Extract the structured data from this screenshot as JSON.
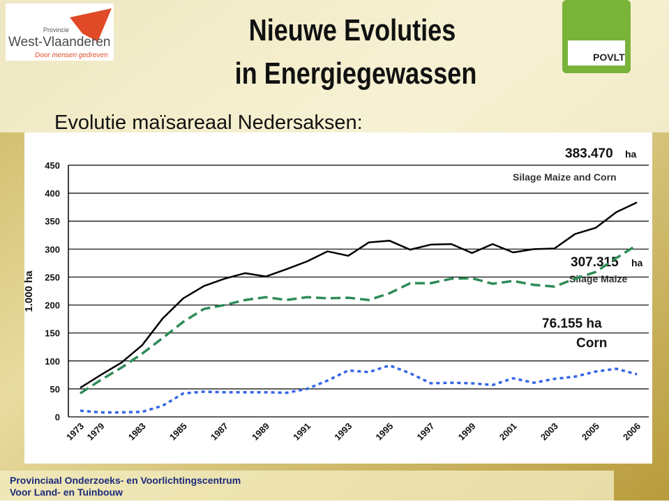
{
  "header": {
    "title_line1": "Nieuwe Evoluties",
    "title_line2": "in Energiegewassen",
    "subtitle": "Evolutie maïsareaal Nedersaksen:",
    "logo_left": {
      "small": "Provincie",
      "name": "West-Vlaanderen",
      "slogan": "Door mensen gedreven"
    },
    "logo_right": "POVLT"
  },
  "footer": {
    "line1": "Provinciaal Onderzoeks- en Voorlichtingscentrum",
    "line2": "Voor Land- en Tuinbouw"
  },
  "chart_data": {
    "type": "line",
    "ylabel": "1.000 ha",
    "categories": [
      "1973",
      "1979",
      null,
      "1983",
      null,
      "1985",
      null,
      "1987",
      null,
      "1989",
      null,
      "1991",
      null,
      "1993",
      null,
      "1995",
      null,
      "1997",
      null,
      "1999",
      null,
      "2001",
      null,
      "2003",
      null,
      "2005",
      null,
      "2006"
    ],
    "series": [
      {
        "name": "Silage Maize and Corn",
        "color": "#000000",
        "dash": "solid",
        "values": [
          52,
          75,
          97,
          128,
          176,
          212,
          234,
          247,
          257,
          251,
          264,
          278,
          296,
          288,
          312,
          315,
          299,
          308,
          309,
          293,
          309,
          294,
          300,
          301,
          327,
          338,
          366,
          383.47
        ]
      },
      {
        "name": "Silage Maize",
        "color": "#2e8b57",
        "dash": "dashed",
        "values": [
          42,
          66,
          88,
          113,
          141,
          170,
          193,
          200,
          209,
          214,
          209,
          214,
          212,
          213,
          209,
          221,
          239,
          239,
          247,
          248,
          238,
          243,
          236,
          233,
          247,
          259,
          284,
          307.315
        ]
      },
      {
        "name": "Corn",
        "color": "#3366e6",
        "dash": "dotted",
        "values": [
          11,
          8,
          8,
          9,
          20,
          42,
          45,
          44,
          44,
          44,
          43,
          50,
          65,
          83,
          80,
          92,
          78,
          60,
          61,
          60,
          57,
          69,
          61,
          68,
          72,
          81,
          86,
          76.155
        ]
      }
    ],
    "annotations": [
      {
        "value": "383.470",
        "unit": "ha",
        "label": "Silage Maize and Corn"
      },
      {
        "value": "307.315",
        "unit": "ha",
        "label": "Silage Maize"
      },
      {
        "value": "76.155 ha",
        "label": "Corn"
      }
    ],
    "ylim": [
      0,
      450
    ],
    "yticks": [
      0,
      50,
      100,
      150,
      200,
      250,
      300,
      350,
      400,
      450
    ],
    "grid": true
  }
}
